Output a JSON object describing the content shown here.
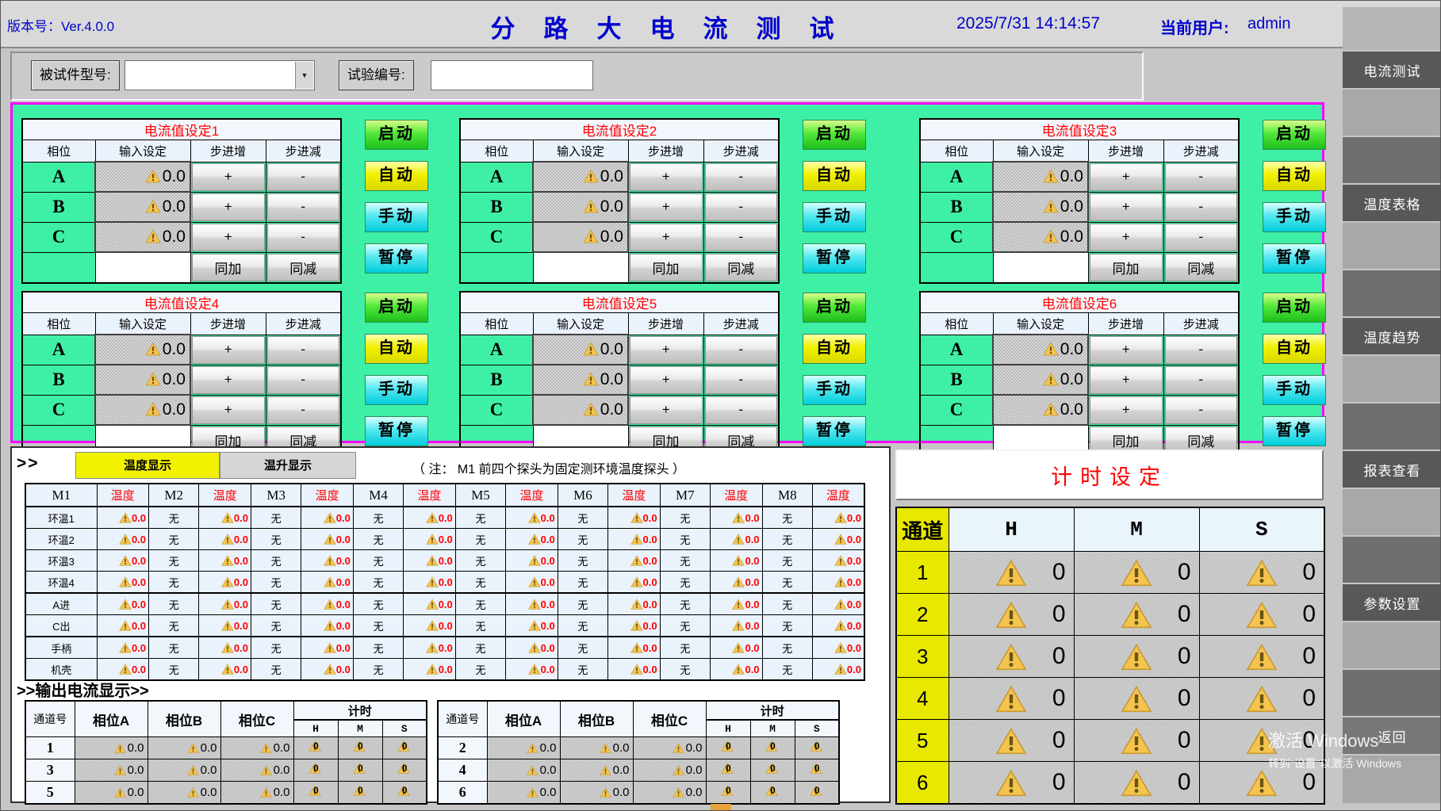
{
  "header": {
    "version_label": "版本号：Ver.4.0.0",
    "title": "分路大电流测试",
    "datetime": "2025/7/31 14:14:57",
    "current_user_label": "当前用户:",
    "current_user": "admin"
  },
  "form": {
    "model_label": "被试件型号:",
    "model_value": "",
    "test_no_label": "试验编号:",
    "test_no_value": ""
  },
  "panels": {
    "titles": [
      "电流值设定1",
      "电流值设定2",
      "电流值设定3",
      "电流值设定4",
      "电流值设定5",
      "电流值设定6"
    ],
    "columns": [
      "相位",
      "输入设定",
      "步进增",
      "步进减"
    ],
    "phases": [
      "A",
      "B",
      "C"
    ],
    "value": "0.0",
    "plus_label": "+",
    "minus_label": "-",
    "sync_add": "同加",
    "sync_sub": "同减",
    "start": "启动",
    "auto": "自动",
    "manual": "手动",
    "pause": "暂停"
  },
  "temperature": {
    "prompt": ">>",
    "tabs": [
      "温度显示",
      "温升显示"
    ],
    "active_tab": "温度显示",
    "note": "（ 注：  M1 前四个探头为固定测环境温度探头 ）",
    "modules": [
      "M1",
      "M2",
      "M3",
      "M4",
      "M5",
      "M6",
      "M7",
      "M8"
    ],
    "temp_header": "温度",
    "rows": [
      "环温1",
      "环温2",
      "环温3",
      "环温4",
      "A进",
      "C出",
      "手柄",
      "机壳"
    ],
    "value": "0.0",
    "none": "无"
  },
  "output": {
    "title": ">>输出电流显示>>",
    "channel_header": "通道号",
    "phase_headers": [
      "相位A",
      "相位B",
      "相位C"
    ],
    "timer_header": "计时",
    "hms": [
      "H",
      "M",
      "S"
    ],
    "tables": [
      {
        "channels": [
          "1",
          "3",
          "5"
        ]
      },
      {
        "channels": [
          "2",
          "4",
          "6"
        ]
      }
    ],
    "value": "0.0",
    "timer_value": "0"
  },
  "timer": {
    "title": "计时设定",
    "channel_header": "通道",
    "hms": [
      "H",
      "M",
      "S"
    ],
    "channels": [
      "1",
      "2",
      "3",
      "4",
      "5",
      "6"
    ],
    "value": "0"
  },
  "sidebar": {
    "items": [
      "电流测试",
      "温度表格",
      "温度趋势",
      "报表查看",
      "参数设置"
    ],
    "back": "返回"
  },
  "watermark": {
    "line1": "激活 Windows",
    "line2": "转到“设置”以激活 Windows"
  },
  "colors": {
    "title_blue": "#0000cc",
    "alert_red": "#ff0000",
    "panel_bg_green": "#3ef0a5",
    "panel_border_magenta": "#ff00ff",
    "start_button_green": "#2ecc2e",
    "auto_button_yellow": "#e8e800",
    "manual_pause_cyan": "#22d4e0",
    "channel_yellow": "#e8e800",
    "active_tab_yellow": "#f2f200",
    "warning_icon": "#f4c44f"
  }
}
